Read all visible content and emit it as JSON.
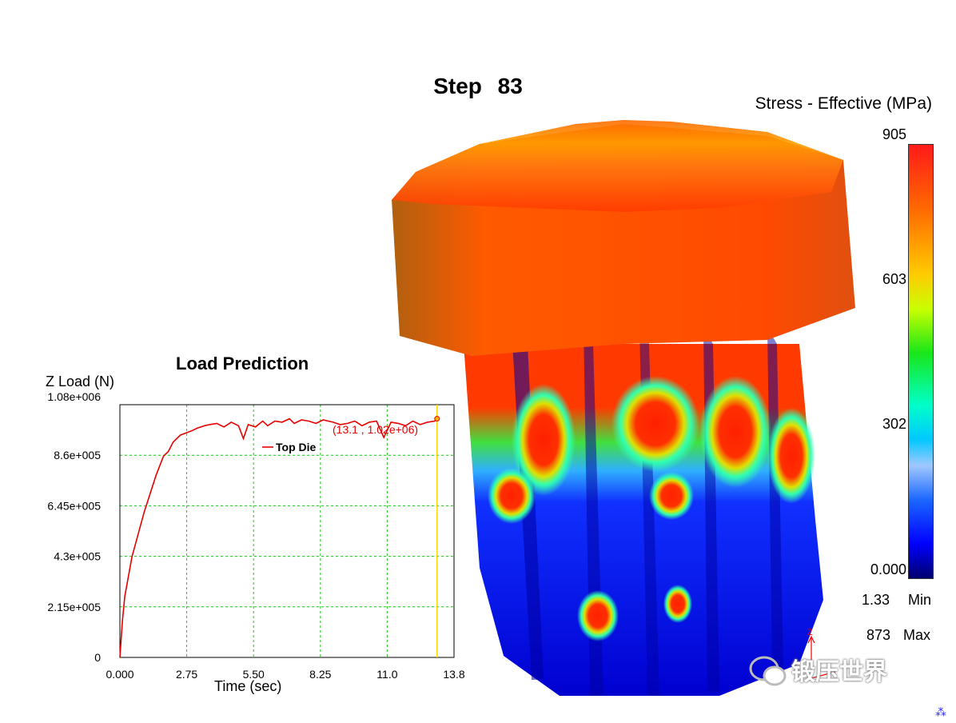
{
  "header": {
    "step_label": "Step",
    "step_number": "83"
  },
  "legend": {
    "title": "Stress - Effective (MPa)",
    "ticks": [
      "905",
      "603",
      "302",
      "0.000"
    ],
    "min_value": "1.33",
    "min_label": "Min",
    "max_value": "873",
    "max_label": "Max"
  },
  "chart": {
    "title": "Load Prediction",
    "ylabel": "Z Load (N)",
    "xlabel": "Time (sec)",
    "legend_entry": "Top Die",
    "annotation": "(13.1 , 1.02e+06)",
    "yticks": [
      "1.08e+006",
      "8.6e+005",
      "6.45e+005",
      "4.3e+005",
      "2.15e+005",
      "0"
    ],
    "xticks": [
      "0.000",
      "2.75",
      "5.50",
      "8.25",
      "11.0",
      "13.8"
    ]
  },
  "chart_data": {
    "type": "line",
    "title": "Load Prediction",
    "xlabel": "Time (sec)",
    "ylabel": "Z Load (N)",
    "xlim": [
      0,
      13.8
    ],
    "ylim": [
      0,
      1080000
    ],
    "current_time": 13.1,
    "series": [
      {
        "name": "Top Die",
        "color": "#e60000",
        "x": [
          0,
          0.1,
          0.2,
          0.5,
          1.0,
          1.5,
          1.8,
          2.0,
          2.2,
          2.5,
          2.75,
          3.0,
          3.2,
          3.5,
          3.7,
          4.0,
          4.3,
          4.6,
          4.9,
          5.1,
          5.3,
          5.6,
          5.9,
          6.1,
          6.4,
          6.7,
          7.0,
          7.2,
          7.5,
          7.8,
          8.1,
          8.4,
          8.8,
          9.1,
          9.4,
          9.7,
          10.0,
          10.3,
          10.6,
          10.9,
          11.2,
          11.5,
          11.8,
          12.1,
          12.4,
          12.7,
          13.0,
          13.1
        ],
        "y": [
          0,
          150000,
          260000,
          430000,
          620000,
          780000,
          860000,
          880000,
          920000,
          950000,
          960000,
          970000,
          980000,
          990000,
          995000,
          1000000,
          985000,
          1005000,
          990000,
          935000,
          995000,
          985000,
          1010000,
          990000,
          1010000,
          1005000,
          1020000,
          1000000,
          1015000,
          1010000,
          1000000,
          1015000,
          1005000,
          995000,
          1000000,
          1010000,
          990000,
          1005000,
          1010000,
          940000,
          1005000,
          1000000,
          990000,
          1010000,
          995000,
          1005000,
          1010000,
          1020000
        ]
      }
    ]
  },
  "watermark": "锻压世界"
}
